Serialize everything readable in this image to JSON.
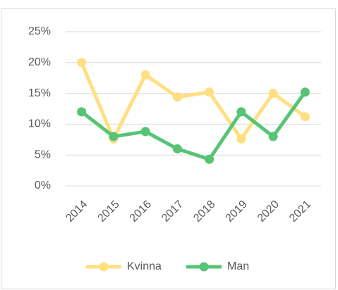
{
  "chart_data": {
    "type": "line",
    "categories": [
      "2014",
      "2015",
      "2016",
      "2017",
      "2018",
      "2019",
      "2020",
      "2021"
    ],
    "series": [
      {
        "name": "Kvinna",
        "color": "#ffdf80",
        "values": [
          20,
          7.6,
          18,
          14.4,
          15.2,
          7.6,
          15,
          11.2
        ]
      },
      {
        "name": "Man",
        "color": "#55c475",
        "values": [
          12,
          8,
          8.8,
          6,
          4.3,
          12,
          8,
          15.2
        ]
      }
    ],
    "ylim": [
      0,
      25
    ],
    "yticks": [
      {
        "value": 0,
        "label": "0%"
      },
      {
        "value": 5,
        "label": "5%"
      },
      {
        "value": 10,
        "label": "10%"
      },
      {
        "value": 15,
        "label": "15%"
      },
      {
        "value": 20,
        "label": "20%"
      },
      {
        "value": 25,
        "label": "25%"
      }
    ],
    "grid": true,
    "legend": "bottom"
  }
}
